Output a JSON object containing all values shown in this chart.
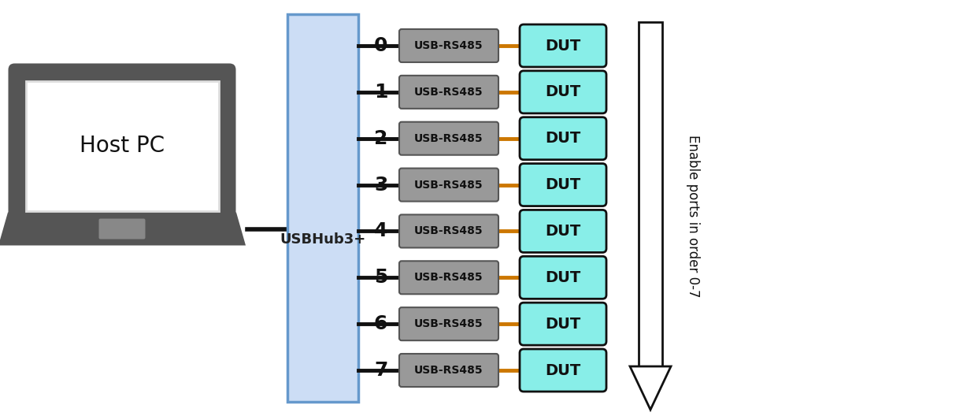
{
  "background_color": "#ffffff",
  "num_ports": 8,
  "laptop_label": "Host PC",
  "hub_label": "USBHub3+",
  "hub_fill": "#ccddf5",
  "hub_edge": "#6699cc",
  "usb_box_color": "#999999",
  "usb_box_edge": "#555555",
  "dut_box_color": "#88eee8",
  "dut_box_edge": "#111111",
  "line_color_black": "#111111",
  "line_color_orange": "#cc7700",
  "arrow_fill": "#ffffff",
  "arrow_edge": "#111111",
  "laptop_body_color": "#555555",
  "laptop_screen_bg": "#ffffff",
  "arrow_text": "Enable ports in order 0-7",
  "port_labels": [
    "0",
    "1",
    "2",
    "3",
    "4",
    "5",
    "6",
    "7"
  ]
}
